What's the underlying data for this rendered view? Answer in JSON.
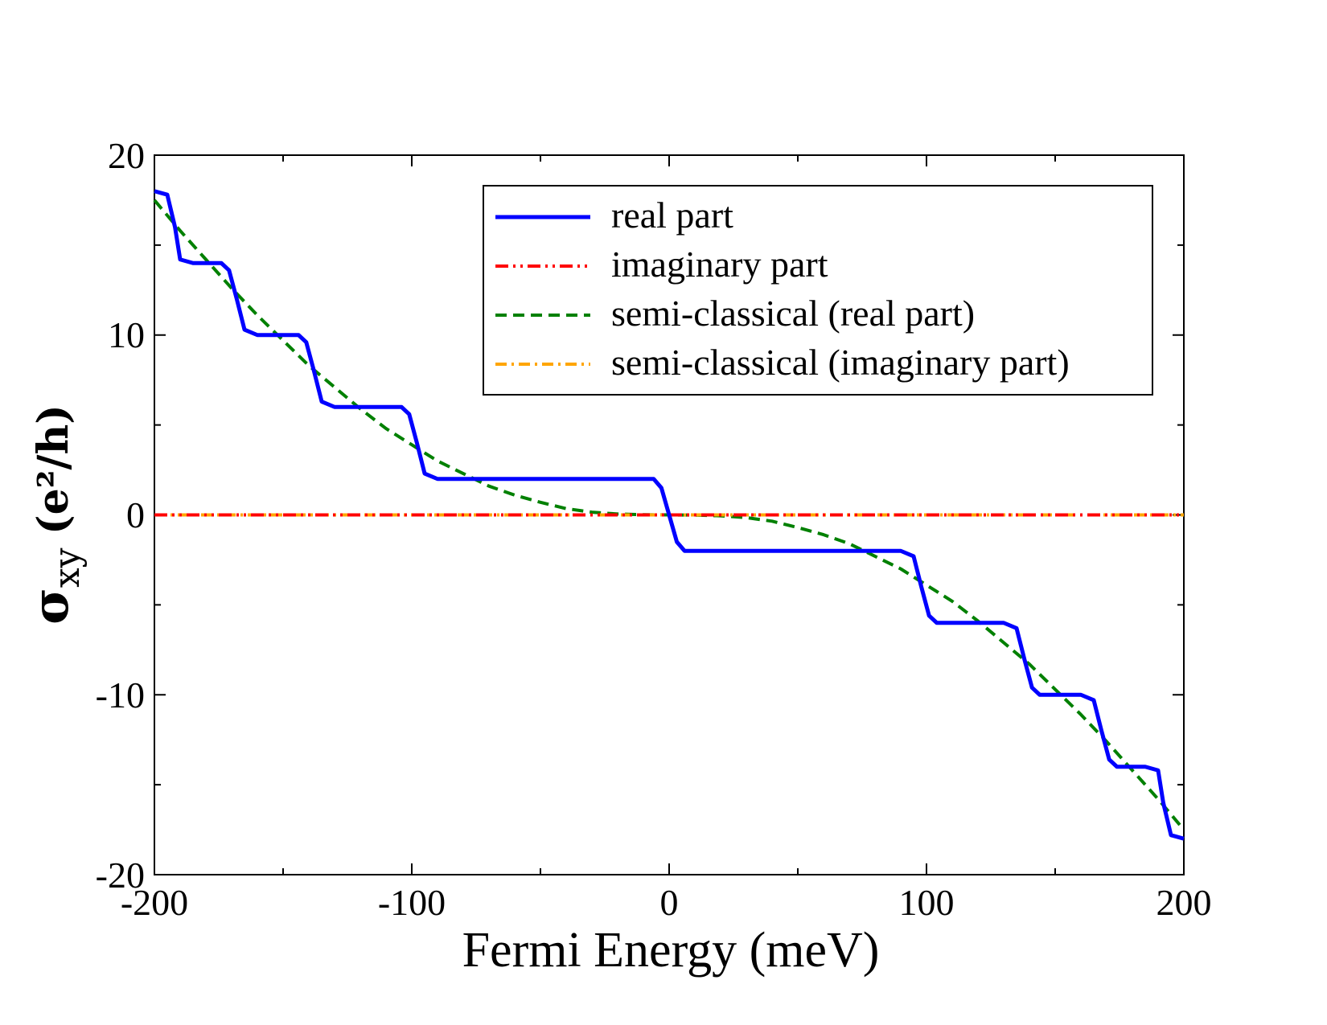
{
  "chart_data": {
    "type": "line",
    "title": "",
    "xlabel": "Fermi Energy (meV)",
    "ylabel": {
      "symbol": "σ",
      "subscript": "xy",
      "units": "(e²/h)"
    },
    "xlim": [
      -200,
      200
    ],
    "ylim": [
      -20,
      20
    ],
    "xticks": [
      -200,
      -100,
      0,
      100,
      200
    ],
    "yticks": [
      -20,
      -10,
      0,
      10,
      20
    ],
    "xtick_labels": [
      "-200",
      "-100",
      "0",
      "100",
      "200"
    ],
    "ytick_labels": [
      "-20",
      "-10",
      "0",
      "10",
      "20"
    ],
    "grid": false,
    "legend_position": "top-right",
    "series": [
      {
        "name": "real part",
        "color": "#0000ff",
        "style": "solid",
        "x": [
          -200,
          -195,
          -192,
          -190,
          -185,
          -174,
          -171,
          -168,
          -165,
          -160,
          -144,
          -141,
          -138,
          -135,
          -130,
          -104,
          -101,
          -98,
          -95,
          -90,
          -6,
          -3,
          0,
          3,
          6,
          90,
          95,
          98,
          101,
          104,
          130,
          135,
          138,
          141,
          144,
          160,
          165,
          168,
          171,
          174,
          185,
          190,
          192,
          195,
          200
        ],
        "y": [
          18,
          17.8,
          16,
          14.2,
          14,
          14,
          13.6,
          12,
          10.3,
          10,
          10,
          9.6,
          8,
          6.3,
          6,
          6,
          5.6,
          4,
          2.3,
          2,
          2,
          1.5,
          0,
          -1.5,
          -2,
          -2,
          -2.3,
          -4,
          -5.6,
          -6,
          -6,
          -6.3,
          -8,
          -9.6,
          -10,
          -10,
          -10.3,
          -12,
          -13.6,
          -14,
          -14,
          -14.2,
          -16,
          -17.8,
          -18
        ]
      },
      {
        "name": "imaginary part",
        "color": "#ff0000",
        "style": "dash-dot-dot",
        "x": [
          -200,
          200
        ],
        "y": [
          0,
          0
        ]
      },
      {
        "name": "semi-classical (real part)",
        "color": "#008000",
        "style": "dashed",
        "x": [
          -200,
          -190,
          -180,
          -170,
          -160,
          -150,
          -140,
          -130,
          -120,
          -110,
          -100,
          -90,
          -80,
          -70,
          -60,
          -50,
          -40,
          -30,
          -20,
          -10,
          0,
          10,
          20,
          30,
          40,
          50,
          60,
          70,
          80,
          90,
          100,
          110,
          120,
          130,
          140,
          150,
          160,
          170,
          180,
          190,
          200
        ],
        "y": [
          17.5,
          15.8,
          14.2,
          12.6,
          11.1,
          9.7,
          8.3,
          7.1,
          5.9,
          4.8,
          3.9,
          3.0,
          2.3,
          1.6,
          1.1,
          0.7,
          0.35,
          0.15,
          0.05,
          0.01,
          0,
          -0.01,
          -0.05,
          -0.15,
          -0.35,
          -0.7,
          -1.1,
          -1.6,
          -2.3,
          -3.0,
          -3.9,
          -4.8,
          -5.9,
          -7.1,
          -8.3,
          -9.7,
          -11.1,
          -12.6,
          -14.2,
          -15.8,
          -17.5
        ]
      },
      {
        "name": "semi-classical (imaginary part)",
        "color": "#ffa500",
        "style": "dash-dot",
        "x": [
          -200,
          200
        ],
        "y": [
          0,
          0
        ]
      }
    ]
  }
}
